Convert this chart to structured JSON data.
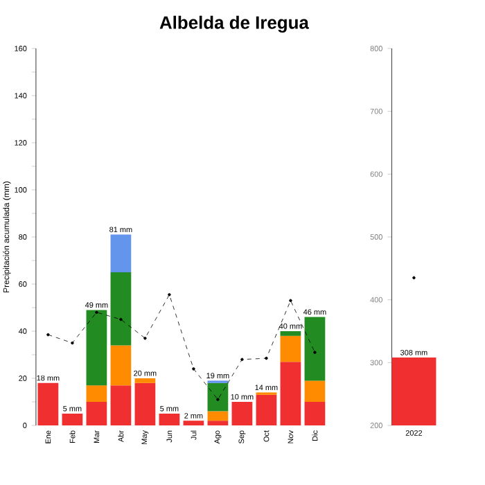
{
  "chart_data": [
    {
      "type": "bar",
      "title": "Albelda de Iregua",
      "ylabel": "Precipitación acumulada (mm)",
      "stacked": true,
      "categories": [
        "Ene",
        "Feb",
        "Mar",
        "Abr",
        "May",
        "Jun",
        "Jul",
        "Ago",
        "Sep",
        "Oct",
        "Nov",
        "Dic"
      ],
      "series": [
        {
          "color": "#f03030",
          "values": [
            18,
            5,
            10,
            17,
            18,
            5,
            2,
            2,
            10,
            13,
            27,
            10
          ]
        },
        {
          "color": "#ff8c00",
          "values": [
            null,
            null,
            7,
            17,
            2,
            null,
            null,
            4,
            null,
            1,
            11,
            9
          ]
        },
        {
          "color": "#228b22",
          "values": [
            null,
            null,
            32,
            31,
            null,
            null,
            null,
            12,
            null,
            null,
            2,
            27
          ]
        },
        {
          "color": "#6495ed",
          "values": [
            null,
            null,
            null,
            16,
            null,
            null,
            null,
            1,
            null,
            null,
            null,
            null
          ]
        },
        {
          "type": "line",
          "color": "#000000",
          "line_style": "dashed",
          "marker": "circle",
          "values": [
            38.5,
            35,
            48,
            45,
            37,
            55.5,
            24,
            11,
            28,
            28.5,
            53,
            31
          ]
        }
      ],
      "totals": [
        "18 mm",
        "5 mm",
        "49 mm",
        "81 mm",
        "20 mm",
        "5 mm",
        "2 mm",
        "19 mm",
        "10 mm",
        "14 mm",
        "40 mm",
        "46 mm"
      ],
      "ylim": [
        0,
        160
      ],
      "yticks": [
        0,
        {
          "value": 10,
          "label": null
        },
        20,
        {
          "value": 30,
          "label": null
        },
        40,
        {
          "value": 50,
          "label": null
        },
        60,
        {
          "value": 70,
          "label": null
        },
        80,
        {
          "value": 90,
          "label": null
        },
        100,
        {
          "value": 110,
          "label": null
        },
        120,
        {
          "value": 130,
          "label": null
        },
        140,
        {
          "value": 150,
          "label": null
        },
        160
      ]
    },
    {
      "type": "bar",
      "categories": [
        "2022"
      ],
      "series": [
        {
          "color": "#f03030",
          "values": [
            308
          ]
        },
        {
          "type": "line",
          "color": "#000000",
          "line_style": "dashed",
          "marker": "circle",
          "values": [
            435
          ]
        }
      ],
      "totals": [
        "308 mm"
      ],
      "ylim": [
        200,
        800
      ],
      "yticks": [
        200,
        300,
        400,
        500,
        600,
        700,
        800
      ]
    }
  ]
}
